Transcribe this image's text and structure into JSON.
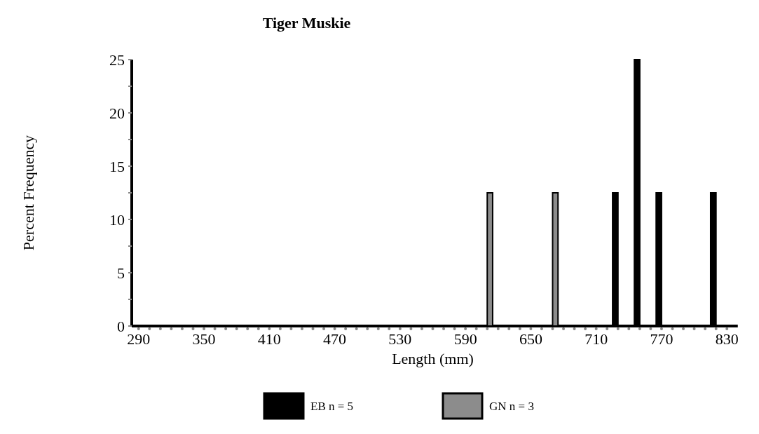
{
  "chart_data": {
    "type": "bar",
    "title": "Tiger Muskie",
    "xlabel": "Length (mm)",
    "ylabel": "Percent Frequency",
    "categories": [
      "290",
      null,
      null,
      null,
      null,
      null,
      "350",
      null,
      null,
      null,
      null,
      null,
      "410",
      null,
      null,
      null,
      null,
      null,
      "470",
      null,
      null,
      null,
      null,
      null,
      "530",
      null,
      null,
      null,
      null,
      null,
      "590",
      null,
      null,
      null,
      null,
      null,
      "650",
      null,
      null,
      null,
      null,
      null,
      "710",
      null,
      null,
      null,
      null,
      null,
      "770",
      null,
      null,
      null,
      null,
      null,
      "830"
    ],
    "series": [
      {
        "name": "EB  n = 5",
        "color": "#000000",
        "values": [
          0,
          0,
          0,
          0,
          0,
          0,
          0,
          0,
          0,
          0,
          0,
          0,
          0,
          0,
          0,
          0,
          0,
          0,
          0,
          0,
          0,
          0,
          0,
          0,
          0,
          0,
          0,
          0,
          0,
          0,
          0,
          0,
          0,
          0,
          0,
          0,
          0,
          0,
          0,
          0,
          0,
          0,
          0,
          0,
          12.5,
          0,
          25,
          0,
          12.5,
          0,
          0,
          0,
          0,
          12.5,
          0
        ]
      },
      {
        "name": "GN  n = 3",
        "color": "#8c8c8c",
        "values": [
          0,
          0,
          0,
          0,
          0,
          0,
          0,
          0,
          0,
          0,
          0,
          0,
          0,
          0,
          0,
          0,
          0,
          0,
          0,
          0,
          0,
          0,
          0,
          0,
          0,
          0,
          0,
          0,
          0,
          0,
          0,
          0,
          12.5,
          0,
          0,
          0,
          0,
          0,
          12.5,
          0,
          0,
          0,
          0,
          0,
          0,
          0,
          0,
          0,
          0,
          0,
          0,
          0,
          0,
          0,
          0
        ]
      }
    ],
    "ylim": [
      0,
      25
    ],
    "yticks": [
      0,
      {
        "value": 2.5,
        "label": null
      },
      5,
      {
        "value": 7.5,
        "label": null
      },
      10,
      {
        "value": 12.5,
        "label": null
      },
      15,
      {
        "value": 17.5,
        "label": null
      },
      20,
      {
        "value": 22.5,
        "label": null
      },
      25
    ],
    "grid": false,
    "legend": "bottom"
  }
}
